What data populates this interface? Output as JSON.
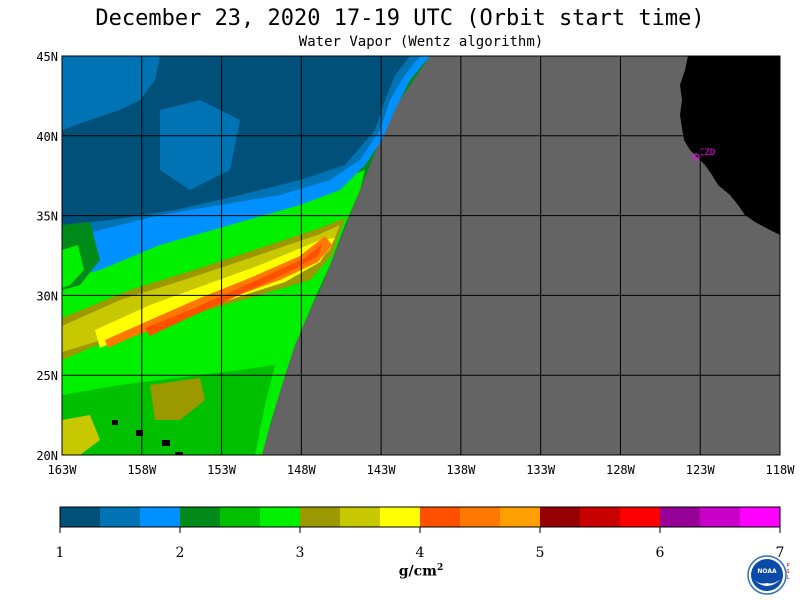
{
  "title": "December 23, 2020  17-19 UTC  (Orbit start time)",
  "subtitle": "Water Vapor (Wentz algorithm)",
  "map": {
    "lon_ticks": [
      "163W",
      "158W",
      "153W",
      "148W",
      "143W",
      "138W",
      "133W",
      "128W",
      "123W",
      "118W"
    ],
    "lat_ticks": [
      "45N",
      "40N",
      "35N",
      "30N",
      "25N",
      "20N"
    ],
    "station_label": "CZD",
    "colors": {
      "no_data": "#646464",
      "land": "#000000",
      "station": "#ff00ff",
      "grid": "#000000"
    }
  },
  "colorbar": {
    "labels": [
      "1",
      "2",
      "3",
      "4",
      "5",
      "6",
      "7"
    ],
    "unit_base": "g/cm",
    "unit_sup": "2",
    "colors": [
      "#00507a",
      "#0073b4",
      "#0090ff",
      "#008a1a",
      "#00c000",
      "#00f000",
      "#9c9800",
      "#c8c800",
      "#ffff00",
      "#ff5000",
      "#ff7800",
      "#ffa000",
      "#960000",
      "#c80000",
      "#ff0000",
      "#960096",
      "#c800c8",
      "#ff00ff"
    ]
  },
  "logo": {
    "icon": "noaa-logo-icon",
    "text": "NOAA",
    "side_letters": [
      "P",
      "S",
      "L"
    ]
  }
}
